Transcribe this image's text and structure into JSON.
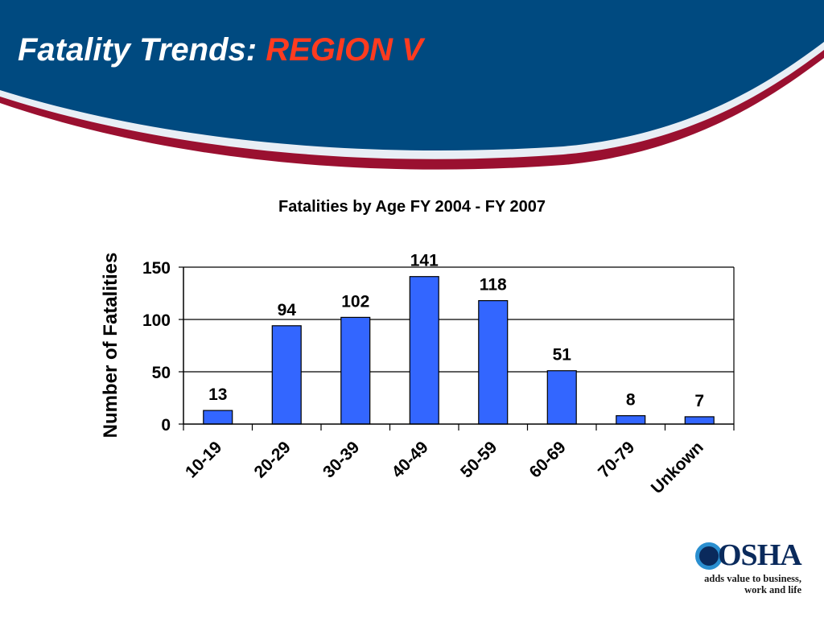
{
  "slide": {
    "title_main": "Fatality Trends: ",
    "title_accent": "REGION V",
    "colors": {
      "banner": "#004a80",
      "stripe": "#9a1030",
      "accent": "#ff3b1f",
      "bar": "#3366ff"
    }
  },
  "logo": {
    "name": "OSHA",
    "icon": "osha-ring-icon",
    "tagline_line1": "adds value to business,",
    "tagline_line2": "work and life"
  },
  "chart_data": {
    "type": "bar",
    "title": "Fatalities by Age FY 2004 - FY 2007",
    "xlabel": "",
    "ylabel": "Number of Fatalities",
    "categories": [
      "10-19",
      "20-29",
      "30-39",
      "40-49",
      "50-59",
      "60-69",
      "70-79",
      "Unkown"
    ],
    "values": [
      13,
      94,
      102,
      141,
      118,
      51,
      8,
      7
    ],
    "data_labels": [
      "13",
      "94",
      "102",
      "141",
      "118",
      "51",
      "8",
      "7"
    ],
    "ylim": [
      0,
      150
    ],
    "yticks": [
      0,
      50,
      100,
      150
    ],
    "grid": true,
    "legend": "none",
    "bar_color": "#3366ff"
  }
}
